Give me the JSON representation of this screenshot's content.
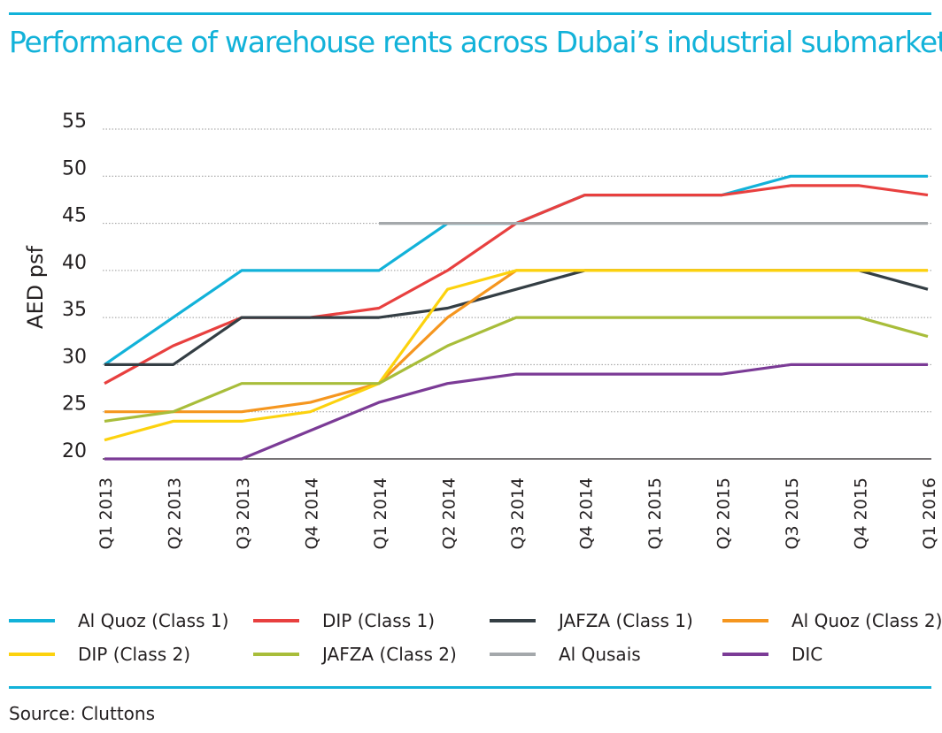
{
  "title": "Performance of warehouse rents across Dubai’s industrial submarkets",
  "source": "Source: Cluttons",
  "colors": {
    "accent": "#12b2d9"
  },
  "chart_data": {
    "type": "line",
    "title": "Performance of warehouse rents across Dubai’s industrial submarkets",
    "xlabel": "",
    "ylabel": "AED psf",
    "ylim": [
      20,
      55
    ],
    "yticks": [
      20,
      25,
      30,
      35,
      40,
      45,
      50,
      55
    ],
    "grid": true,
    "legend_position": "bottom",
    "categories": [
      "Q1 2013",
      "Q2 2013",
      "Q3 2013",
      "Q4 2014",
      "Q1 2014",
      "Q2 2014",
      "Q3 2014",
      "Q4 2014",
      "Q1 2015",
      "Q2 2015",
      "Q3 2015",
      "Q4 2015",
      "Q1 2016"
    ],
    "series": [
      {
        "name": "Al Quoz (Class 1)",
        "color": "#12b2d9",
        "values": [
          30,
          35,
          40,
          40,
          40,
          45,
          45,
          48,
          48,
          48,
          50,
          50,
          50
        ]
      },
      {
        "name": "DIP (Class 1)",
        "color": "#e8403f",
        "values": [
          28,
          32,
          35,
          35,
          36,
          40,
          45,
          48,
          48,
          48,
          49,
          49,
          48
        ]
      },
      {
        "name": "JAFZA (Class 1)",
        "color": "#343e44",
        "values": [
          30,
          30,
          35,
          35,
          35,
          36,
          38,
          40,
          40,
          40,
          40,
          40,
          38
        ]
      },
      {
        "name": "Al Quoz (Class 2)",
        "color": "#f5961f",
        "values": [
          25,
          25,
          25,
          26,
          28,
          35,
          40,
          40,
          40,
          40,
          40,
          40,
          40
        ]
      },
      {
        "name": "DIP (Class 2)",
        "color": "#fcd20e",
        "values": [
          22,
          24,
          24,
          25,
          28,
          38,
          40,
          40,
          40,
          40,
          40,
          40,
          40
        ]
      },
      {
        "name": "JAFZA (Class 2)",
        "color": "#a8bd3a",
        "values": [
          24,
          25,
          28,
          28,
          28,
          32,
          35,
          35,
          35,
          35,
          35,
          35,
          33
        ]
      },
      {
        "name": "Al Qusais",
        "color": "#a4a8ab",
        "values": [
          null,
          null,
          null,
          null,
          45,
          45,
          45,
          45,
          45,
          45,
          45,
          45,
          45
        ]
      },
      {
        "name": "DIC",
        "color": "#7b3b96",
        "values": [
          20,
          20,
          20,
          23,
          26,
          28,
          29,
          29,
          29,
          29,
          30,
          30,
          30
        ]
      }
    ]
  }
}
